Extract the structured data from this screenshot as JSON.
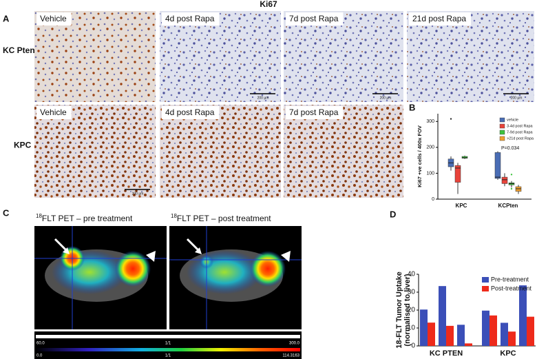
{
  "title": "Ki67",
  "panel_labels": {
    "a": "A",
    "b": "B",
    "c": "C",
    "d": "D"
  },
  "histology": {
    "rows": [
      {
        "label": "KC Pten",
        "images": [
          "Vehicle",
          "4d post Rapa",
          "7d post Rapa",
          "21d post Rapa"
        ]
      },
      {
        "label": "KPC",
        "images": [
          "Vehicle",
          "4d post Rapa",
          "7d post Rapa"
        ]
      }
    ],
    "scale_bar": "200 µm"
  },
  "pet": {
    "images": [
      {
        "isotope": "18",
        "title": "FLT PET – pre treatment"
      },
      {
        "isotope": "18",
        "title": "FLT PET – post treatment"
      }
    ],
    "scales": [
      [
        "60.0",
        "1/1",
        "300.0"
      ],
      [
        "0.0",
        "1/1",
        "114.3163"
      ]
    ]
  },
  "chart_data": [
    {
      "type": "box",
      "ylabel": "Ki67 +ve cells / 400x FOV",
      "categories": [
        "KPC",
        "KCPten"
      ],
      "ylim": [
        0,
        330
      ],
      "yticks": [
        0,
        100,
        200,
        300
      ],
      "annotation": "P=0.034",
      "legend": "upper right",
      "series": [
        {
          "name": "vehicle",
          "color": "#4a6db5",
          "values": [
            {
              "min": 110,
              "q1": 125,
              "median": 140,
              "q3": 155,
              "max": 165,
              "outliers": [
                310
              ]
            },
            {
              "min": 75,
              "q1": 80,
              "median": 85,
              "q3": 180,
              "max": 185
            }
          ]
        },
        {
          "name": "3-4d post Rapa",
          "color": "#e8433a",
          "values": [
            {
              "min": 20,
              "q1": 65,
              "median": 120,
              "q3": 130,
              "max": 140
            },
            {
              "min": 50,
              "q1": 60,
              "median": 75,
              "q3": 85,
              "max": 100
            }
          ]
        },
        {
          "name": "7-9d post Rapa",
          "color": "#3ec43e",
          "values": [
            {
              "min": 155,
              "q1": 158,
              "median": 160,
              "q3": 165,
              "max": 168
            },
            {
              "min": 45,
              "q1": 55,
              "median": 60,
              "q3": 63,
              "max": 70,
              "outliers": [
                95,
                40
              ]
            }
          ]
        },
        {
          "name": ">21d post Rapa",
          "color": "#f0a030",
          "values": [
            null,
            {
              "min": 20,
              "q1": 30,
              "median": 40,
              "q3": 48,
              "max": 55
            }
          ]
        }
      ]
    },
    {
      "type": "bar",
      "ylabel": [
        "18-FLT Tumor Uptake",
        "(normalised to liver)"
      ],
      "groups": [
        "KC PTEN",
        "KPC"
      ],
      "ylim": [
        0,
        40
      ],
      "yticks": [
        0,
        10,
        20,
        30,
        40
      ],
      "legend": "upper right",
      "series": [
        {
          "name": "Pre-treatment",
          "color": "#3b4fb8",
          "values": [
            [
              20.3,
              33.4,
              11.8
            ],
            [
              19.7,
              12.9,
              33.8
            ]
          ]
        },
        {
          "name": "Post-treatment",
          "color": "#ee2a1b",
          "values": [
            [
              13,
              11.2,
              1.4
            ],
            [
              17,
              8,
              16.3
            ]
          ]
        }
      ]
    }
  ]
}
